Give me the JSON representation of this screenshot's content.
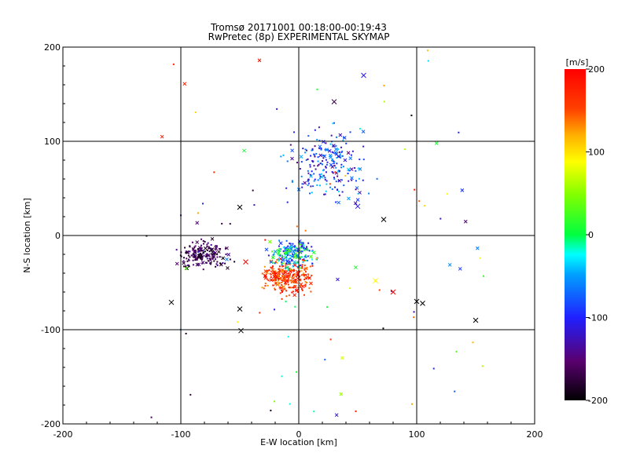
{
  "chart_data": {
    "type": "scatter",
    "title": "Tromsø 20171001 00:18:00-00:19:43",
    "subtitle": "RwPretec (8p) EXPERIMENTAL SKYMAP",
    "xlabel": "E-W location [km]",
    "ylabel": "N-S location [km]",
    "xlim": [
      -200,
      200
    ],
    "ylim": [
      -200,
      200
    ],
    "xticks": [
      "-200",
      "-100",
      "0",
      "100",
      "200"
    ],
    "yticks": [
      "-200",
      "-100",
      "0",
      "100",
      "200"
    ],
    "grid": true,
    "colorbar": {
      "label": "[m/s]",
      "range": [
        -200,
        200
      ],
      "ticks": [
        "200",
        "100",
        "0",
        "-100",
        "-200"
      ],
      "colormap": "rainbow: -200 black → purple → blue → cyan → green → yellow → red 200"
    },
    "clusters": [
      {
        "region": "north-east",
        "x_range": [
          -20,
          70
        ],
        "y_range": [
          20,
          130
        ],
        "velocity_range": [
          -150,
          -30
        ],
        "count": 220
      },
      {
        "region": "central-south",
        "x_range": [
          -40,
          20
        ],
        "y_range": [
          -70,
          -20
        ],
        "velocity_range": [
          120,
          200
        ],
        "count": 260
      },
      {
        "region": "central",
        "x_range": [
          -30,
          20
        ],
        "y_range": [
          -40,
          0
        ],
        "velocity_range": [
          -120,
          40
        ],
        "count": 200
      },
      {
        "region": "west",
        "x_range": [
          -110,
          -50
        ],
        "y_range": [
          -40,
          0
        ],
        "velocity_range": [
          -200,
          -130
        ],
        "count": 180
      },
      {
        "region": "scattered",
        "x_range": [
          -130,
          160
        ],
        "y_range": [
          -200,
          200
        ],
        "velocity_range": [
          -200,
          200
        ],
        "count": 90
      }
    ],
    "markers": [
      {
        "x": 55,
        "y": 170,
        "v": -110
      },
      {
        "x": 30,
        "y": 142,
        "v": -170
      },
      {
        "x": -50,
        "y": 30,
        "v": -200
      },
      {
        "x": 72,
        "y": 17,
        "v": -200
      },
      {
        "x": 50,
        "y": 31,
        "v": -110
      },
      {
        "x": 100,
        "y": -70,
        "v": -200
      },
      {
        "x": 105,
        "y": -72,
        "v": -200
      },
      {
        "x": 150,
        "y": -90,
        "v": -200
      },
      {
        "x": -108,
        "y": -71,
        "v": -200
      },
      {
        "x": -50,
        "y": -78,
        "v": -200
      },
      {
        "x": -49,
        "y": -101,
        "v": -200
      },
      {
        "x": 80,
        "y": -60,
        "v": 200
      },
      {
        "x": 65,
        "y": -48,
        "v": 90
      },
      {
        "x": -45,
        "y": -28,
        "v": 200
      },
      {
        "x": -22,
        "y": -40,
        "v": 160
      }
    ]
  }
}
